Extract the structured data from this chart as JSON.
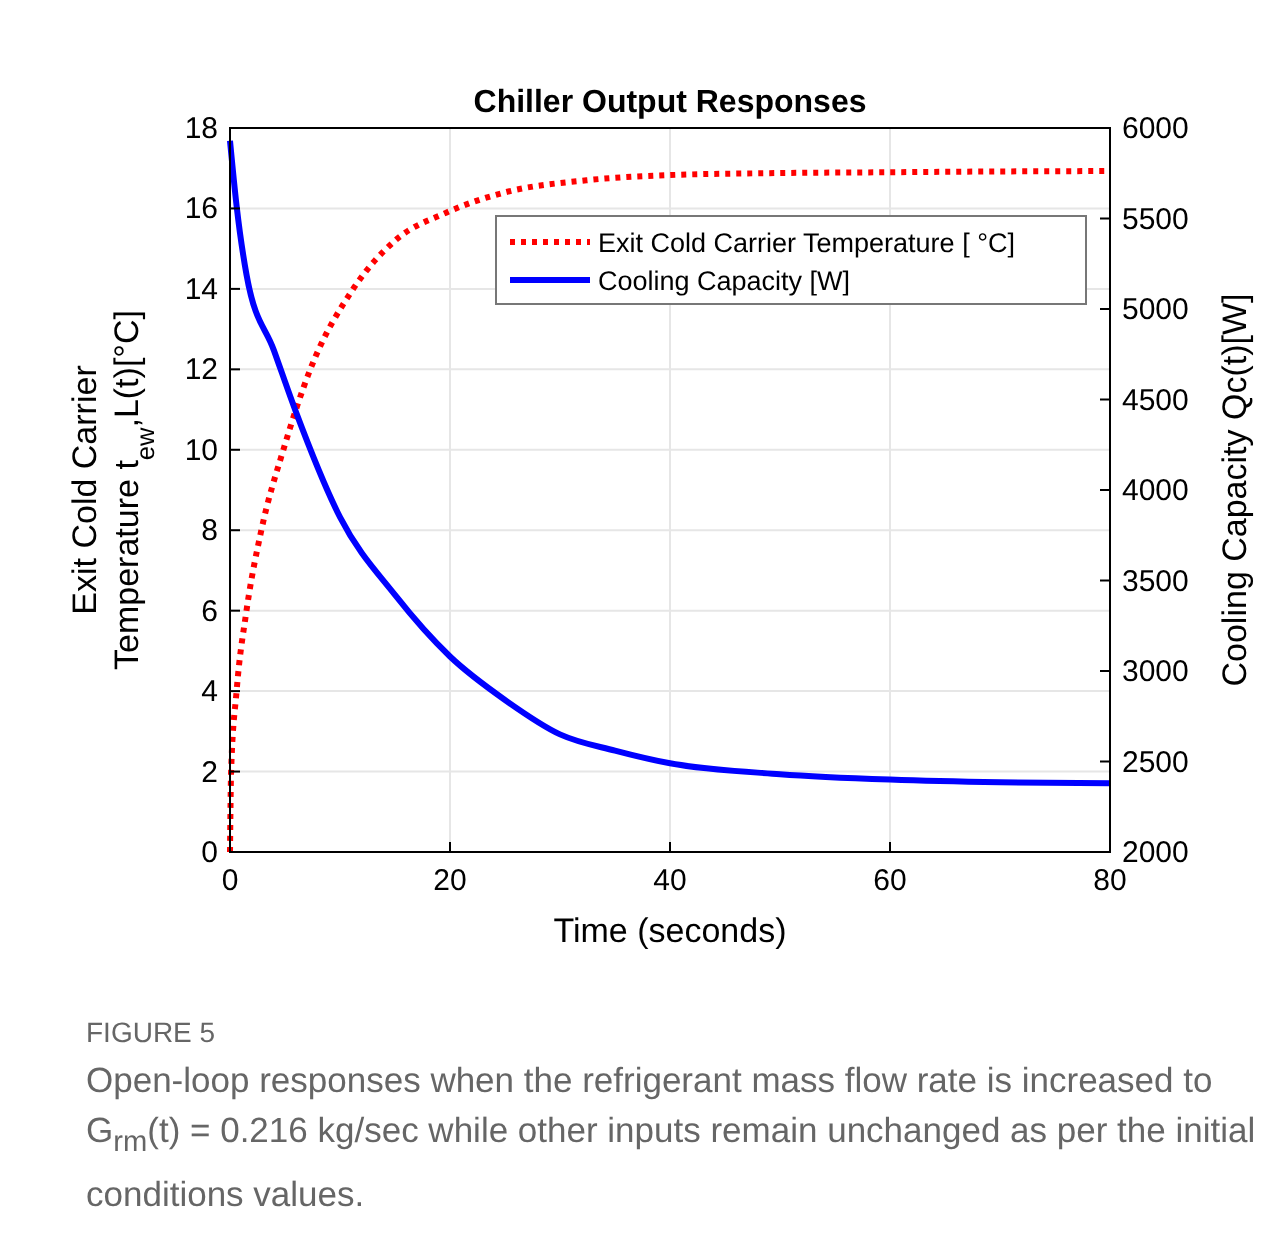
{
  "chart_data": {
    "type": "line",
    "title": "Chiller Output Responses",
    "xlabel": "Time (seconds)",
    "ylabel": "Exit Cold Carrier\nTemperature t$_{ew}$,L(t)[°C]",
    "y2label": "Cooling Capacity Qc(t)[W]",
    "xlim": [
      0,
      80
    ],
    "xticks": [
      0,
      20,
      40,
      60,
      80
    ],
    "ylim": [
      0,
      18
    ],
    "yticks": [
      0,
      2,
      4,
      6,
      8,
      10,
      12,
      14,
      16,
      18
    ],
    "y2lim": [
      2000,
      6000
    ],
    "y2ticks": [
      2000,
      2500,
      3000,
      3500,
      4000,
      4500,
      5000,
      5500,
      6000
    ],
    "grid": true,
    "legend": "top right",
    "series": [
      {
        "name": "Exit Cold Carrier Temperature [ °C]",
        "color": "#ff0000",
        "line_style": "dotted",
        "x": [
          0,
          0.1,
          0.6,
          1.5,
          2.85,
          4.85,
          7.3,
          11.2,
          15,
          19.7,
          25,
          32.4,
          40,
          50,
          60,
          70,
          80
        ],
        "values": [
          0,
          2,
          4,
          6,
          8,
          10,
          12,
          14,
          15.2,
          15.9,
          16.4,
          16.7,
          16.83,
          16.88,
          16.9,
          16.92,
          16.93
        ]
      },
      {
        "name": "Cooling Capacity [W]",
        "color": "#0000ff",
        "line_style": "solid",
        "axis": "y2",
        "x": [
          0,
          0.6,
          1.5,
          4,
          6,
          10,
          15,
          20,
          25,
          30,
          35,
          40,
          50,
          60,
          70,
          80
        ],
        "values": [
          5930,
          5570,
          5190,
          4770,
          4430,
          3850,
          3420,
          3080,
          2840,
          2650,
          2560,
          2490,
          2430,
          2400,
          2385,
          2380
        ]
      }
    ],
    "annotations": [
      "FIGURE 5",
      "Open-loop responses when the refrigerant mass flow rate is increased to G$_{rm}$(t) = 0.216 kg/sec while other inputs remain unchanged as per the initial conditions values."
    ]
  }
}
